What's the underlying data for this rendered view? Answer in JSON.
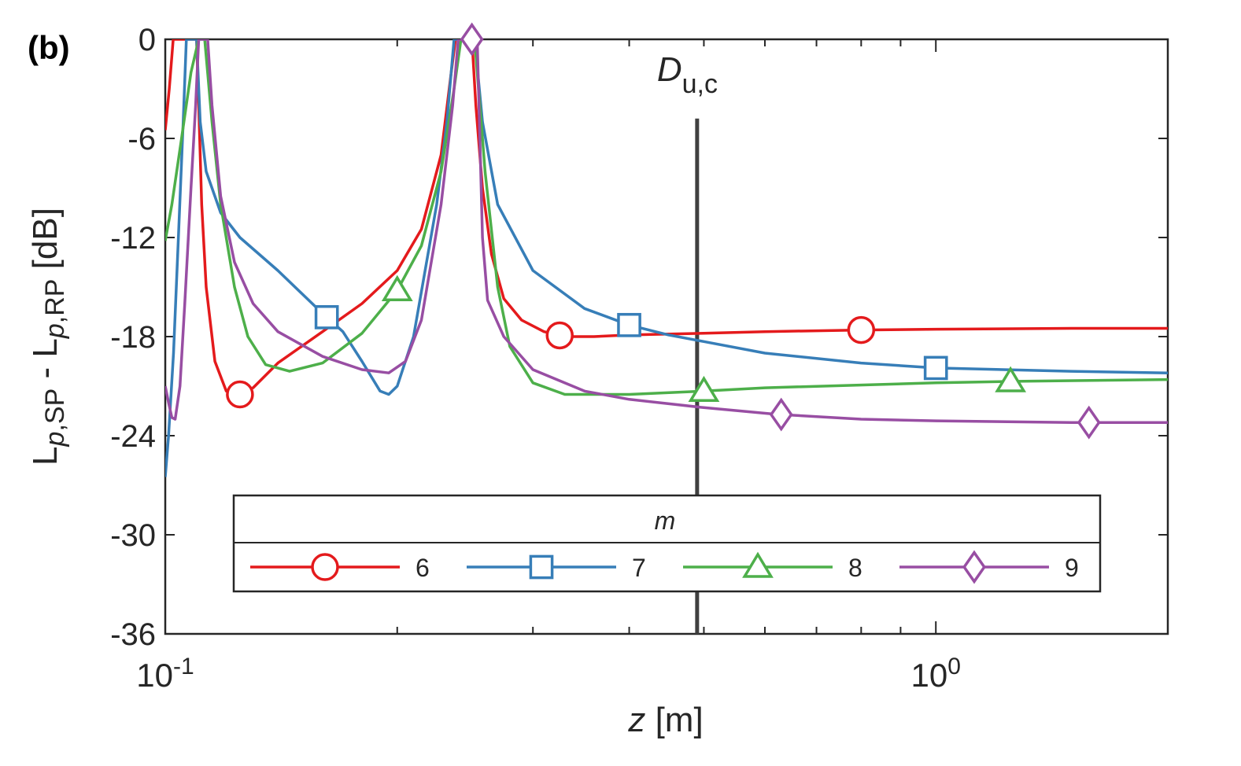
{
  "panel_label": "(b)",
  "chart_data": {
    "type": "line",
    "xscale": "log",
    "xlim": [
      0.1,
      2.0
    ],
    "ylim": [
      -36,
      0
    ],
    "xlabel": {
      "var": "z",
      "unit": "[m]"
    },
    "ylabel": {
      "L1": "L",
      "sub1_var": "p",
      "sub1_rest": ",SP",
      "minus": " - ",
      "L2": "L",
      "sub2_var": "p",
      "sub2_rest": ",RP",
      "unit": " [dB]"
    },
    "yticks": [
      0,
      -6,
      -12,
      -18,
      -24,
      -30,
      -36
    ],
    "ytick_labels": [
      "0",
      "-6",
      "-12",
      "-18",
      "-24",
      "-30",
      "-36"
    ],
    "xticks_major": [
      {
        "value": 0.1,
        "base": "10",
        "exp": "-1"
      },
      {
        "value": 1.0,
        "base": "10",
        "exp": "0"
      }
    ],
    "xticks_minor": [
      0.2,
      0.3,
      0.4,
      0.5,
      0.6,
      0.7,
      0.8,
      0.9,
      2.0
    ],
    "grid": false,
    "annotation": {
      "x": 0.49,
      "y_top": -4.8,
      "y_bottom": -36,
      "label_main": "D",
      "label_sub": "u,c"
    },
    "legend": {
      "title": "m",
      "placement": "bottom-center"
    },
    "series": [
      {
        "name": "6",
        "color": "#e41a1c",
        "marker": "circle",
        "points": [
          [
            0.1,
            -5.5
          ],
          [
            0.1012,
            -3
          ],
          [
            0.1024,
            0
          ],
          [
            0.1098,
            0
          ],
          [
            0.1105,
            -4
          ],
          [
            0.1115,
            -10
          ],
          [
            0.113,
            -15
          ],
          [
            0.116,
            -19.5
          ],
          [
            0.12,
            -21.3
          ],
          [
            0.125,
            -21.5
          ],
          [
            0.13,
            -21.1
          ],
          [
            0.14,
            -19.6
          ],
          [
            0.16,
            -17.7
          ],
          [
            0.18,
            -16
          ],
          [
            0.2,
            -14
          ],
          [
            0.215,
            -11.5
          ],
          [
            0.228,
            -7
          ],
          [
            0.235,
            -2
          ],
          [
            0.238,
            0
          ],
          [
            0.25,
            0
          ],
          [
            0.253,
            -4
          ],
          [
            0.258,
            -9
          ],
          [
            0.265,
            -13
          ],
          [
            0.275,
            -15.7
          ],
          [
            0.29,
            -17
          ],
          [
            0.31,
            -17.7
          ],
          [
            0.33,
            -18
          ],
          [
            0.36,
            -18
          ],
          [
            0.4,
            -17.9
          ],
          [
            0.5,
            -17.8
          ],
          [
            0.6,
            -17.7
          ],
          [
            0.8,
            -17.6
          ],
          [
            1.0,
            -17.55
          ],
          [
            1.5,
            -17.5
          ],
          [
            2.0,
            -17.5
          ]
        ],
        "markers_x": [
          0.125,
          0.325,
          0.8
        ]
      },
      {
        "name": "7",
        "color": "#377eb8",
        "marker": "square",
        "points": [
          [
            0.1,
            -26.5
          ],
          [
            0.101,
            -24
          ],
          [
            0.1025,
            -19
          ],
          [
            0.104,
            -12
          ],
          [
            0.1055,
            -5
          ],
          [
            0.1065,
            0
          ],
          [
            0.1098,
            0
          ],
          [
            0.111,
            -5
          ],
          [
            0.113,
            -8
          ],
          [
            0.118,
            -10.5
          ],
          [
            0.125,
            -12
          ],
          [
            0.14,
            -14
          ],
          [
            0.16,
            -16.6
          ],
          [
            0.17,
            -17.7
          ],
          [
            0.18,
            -19.5
          ],
          [
            0.19,
            -21.3
          ],
          [
            0.195,
            -21.5
          ],
          [
            0.2,
            -21
          ],
          [
            0.21,
            -18
          ],
          [
            0.225,
            -10
          ],
          [
            0.232,
            -5
          ],
          [
            0.237,
            0
          ],
          [
            0.252,
            0
          ],
          [
            0.258,
            -5
          ],
          [
            0.27,
            -10
          ],
          [
            0.3,
            -14
          ],
          [
            0.35,
            -16.3
          ],
          [
            0.4,
            -17.3
          ],
          [
            0.45,
            -17.9
          ],
          [
            0.5,
            -18.3
          ],
          [
            0.6,
            -19
          ],
          [
            0.8,
            -19.6
          ],
          [
            1.0,
            -19.9
          ],
          [
            1.5,
            -20.1
          ],
          [
            2.0,
            -20.2
          ]
        ],
        "markers_x": [
          0.162,
          0.4,
          1.0
        ]
      },
      {
        "name": "8",
        "color": "#4daf4a",
        "marker": "triangle",
        "points": [
          [
            0.1,
            -12.2
          ],
          [
            0.102,
            -10
          ],
          [
            0.105,
            -6
          ],
          [
            0.108,
            -2
          ],
          [
            0.1105,
            0
          ],
          [
            0.1125,
            0
          ],
          [
            0.115,
            -5
          ],
          [
            0.118,
            -10
          ],
          [
            0.123,
            -15
          ],
          [
            0.128,
            -18
          ],
          [
            0.135,
            -19.7
          ],
          [
            0.145,
            -20.1
          ],
          [
            0.16,
            -19.6
          ],
          [
            0.18,
            -17.8
          ],
          [
            0.2,
            -15.2
          ],
          [
            0.215,
            -12.5
          ],
          [
            0.228,
            -8
          ],
          [
            0.237,
            -3
          ],
          [
            0.242,
            0
          ],
          [
            0.252,
            0
          ],
          [
            0.256,
            -4
          ],
          [
            0.26,
            -8
          ],
          [
            0.27,
            -15
          ],
          [
            0.28,
            -18.6
          ],
          [
            0.3,
            -20.8
          ],
          [
            0.33,
            -21.5
          ],
          [
            0.4,
            -21.5
          ],
          [
            0.5,
            -21.3
          ],
          [
            0.6,
            -21.1
          ],
          [
            1.0,
            -20.8
          ],
          [
            1.3,
            -20.7
          ],
          [
            2.0,
            -20.6
          ]
        ],
        "markers_x": [
          0.2,
          0.5,
          1.25
        ]
      },
      {
        "name": "9",
        "color": "#984ea3",
        "marker": "diamond",
        "points": [
          [
            0.1,
            -21
          ],
          [
            0.101,
            -22
          ],
          [
            0.102,
            -22.9
          ],
          [
            0.103,
            -23
          ],
          [
            0.1045,
            -21
          ],
          [
            0.106,
            -16
          ],
          [
            0.108,
            -9
          ],
          [
            0.1095,
            -4
          ],
          [
            0.1105,
            0
          ],
          [
            0.1135,
            0
          ],
          [
            0.115,
            -4
          ],
          [
            0.118,
            -9.5
          ],
          [
            0.123,
            -13.5
          ],
          [
            0.13,
            -16
          ],
          [
            0.14,
            -17.7
          ],
          [
            0.16,
            -19.2
          ],
          [
            0.18,
            -20
          ],
          [
            0.195,
            -20.2
          ],
          [
            0.205,
            -19.5
          ],
          [
            0.215,
            -17
          ],
          [
            0.228,
            -10
          ],
          [
            0.236,
            -4
          ],
          [
            0.24,
            0
          ],
          [
            0.254,
            0
          ],
          [
            0.256,
            -6
          ],
          [
            0.258,
            -12
          ],
          [
            0.262,
            -15.8
          ],
          [
            0.275,
            -18
          ],
          [
            0.3,
            -20
          ],
          [
            0.35,
            -21.3
          ],
          [
            0.4,
            -21.8
          ],
          [
            0.5,
            -22.3
          ],
          [
            0.62,
            -22.7
          ],
          [
            0.8,
            -23
          ],
          [
            1.0,
            -23.1
          ],
          [
            1.5,
            -23.2
          ],
          [
            2.0,
            -23.2
          ]
        ],
        "markers_x": [
          0.25,
          0.63,
          1.58
        ]
      }
    ]
  }
}
